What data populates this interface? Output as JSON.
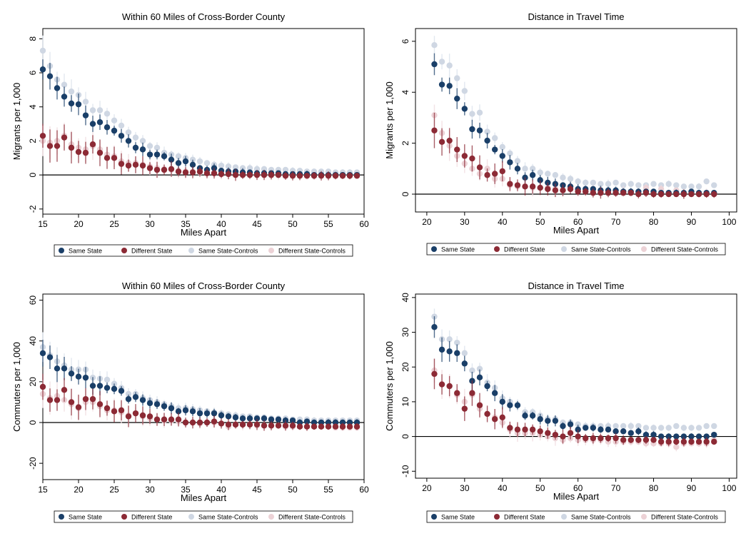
{
  "colors": {
    "same_state": "#1a3f68",
    "different_state": "#8c2a35",
    "same_state_controls": "#cfd7e3",
    "different_state_controls": "#ecd2d6",
    "same_state_ci": "#1a3f68",
    "different_state_ci": "#8c2a35",
    "same_state_controls_ci": "#dfe5ee",
    "different_state_controls_ci": "#f2dfe2"
  },
  "legend": [
    "Same State",
    "Different State",
    "Same State-Controls",
    "Different State-Controls"
  ],
  "chart_data": [
    {
      "type": "scatter",
      "title": "Within 60 Miles of Cross-Border County",
      "xlabel": "Miles Apart",
      "ylabel": "Migrants per 1,000",
      "xlim": [
        15,
        60
      ],
      "ylim": [
        -2.3,
        8.6
      ],
      "xticks": [
        15,
        20,
        25,
        30,
        35,
        40,
        45,
        50,
        55,
        60
      ],
      "yticks": [
        -2,
        0,
        2,
        4,
        6,
        8
      ],
      "grid": false,
      "legend_position": "bottom",
      "x": [
        15,
        16,
        17,
        18,
        19,
        20,
        21,
        22,
        23,
        24,
        25,
        26,
        27,
        28,
        29,
        30,
        31,
        32,
        33,
        34,
        35,
        36,
        37,
        38,
        39,
        40,
        41,
        42,
        43,
        44,
        45,
        46,
        47,
        48,
        49,
        50,
        51,
        52,
        53,
        54,
        55,
        56,
        57,
        58,
        59
      ],
      "series": [
        {
          "name": "Same State",
          "values": [
            6.2,
            5.8,
            5.1,
            4.6,
            4.2,
            4.15,
            3.5,
            3.0,
            3.1,
            2.8,
            2.6,
            2.3,
            2.0,
            1.6,
            1.5,
            1.2,
            1.2,
            1.1,
            0.9,
            0.7,
            0.8,
            0.6,
            0.4,
            0.3,
            0.4,
            0.25,
            0.2,
            0.2,
            0.15,
            0.15,
            0.1,
            0.1,
            0.1,
            0.1,
            0.05,
            0.05,
            0.05,
            0.05,
            0.0,
            0.0,
            0.0,
            0.0,
            0.0,
            0.0,
            0.0
          ]
        },
        {
          "name": "Different State",
          "values": [
            2.3,
            1.7,
            1.7,
            2.2,
            1.6,
            1.35,
            1.3,
            1.8,
            1.3,
            1.0,
            1.0,
            0.65,
            0.55,
            0.6,
            0.55,
            0.4,
            0.3,
            0.3,
            0.35,
            0.2,
            0.15,
            0.15,
            0.2,
            0.1,
            0.1,
            0.05,
            0.05,
            0.0,
            0.0,
            0.0,
            0.0,
            0.0,
            0.0,
            0.0,
            -0.05,
            -0.05,
            -0.05,
            -0.05,
            -0.05,
            -0.05,
            -0.05,
            -0.05,
            -0.05,
            -0.05,
            -0.05
          ]
        },
        {
          "name": "Same State-Controls",
          "values": [
            7.3,
            6.4,
            5.6,
            5.3,
            4.9,
            4.7,
            4.3,
            3.8,
            3.8,
            3.6,
            3.2,
            2.9,
            2.5,
            2.2,
            2.0,
            1.7,
            1.6,
            1.3,
            1.2,
            1.1,
            1.0,
            0.9,
            0.8,
            0.7,
            0.6,
            0.55,
            0.5,
            0.45,
            0.4,
            0.4,
            0.35,
            0.35,
            0.3,
            0.3,
            0.3,
            0.25,
            0.25,
            0.2,
            0.2,
            0.2,
            0.2,
            0.15,
            0.15,
            0.15,
            0.15
          ]
        },
        {
          "name": "Different State-Controls",
          "values": [
            2.0,
            1.9,
            2.0,
            2.3,
            1.8,
            1.6,
            1.5,
            1.7,
            1.5,
            1.2,
            1.1,
            0.8,
            0.7,
            0.7,
            0.6,
            0.5,
            0.4,
            0.35,
            0.3,
            0.25,
            0.2,
            0.2,
            0.15,
            0.1,
            0.1,
            0.1,
            0.05,
            0.05,
            0.05,
            0.0,
            0.0,
            0.0,
            0.0,
            0.0,
            0.0,
            0.0,
            0.0,
            0.0,
            0.0,
            0.0,
            0.0,
            0.0,
            0.0,
            0.0,
            0.0
          ]
        }
      ]
    },
    {
      "type": "scatter",
      "title": "Distance in Travel Time",
      "xlabel": "Miles Apart",
      "ylabel": "Migrants per 1,000",
      "xlim": [
        17,
        102
      ],
      "ylim": [
        -0.7,
        6.5
      ],
      "xticks": [
        20,
        30,
        40,
        50,
        60,
        70,
        80,
        90,
        100
      ],
      "yticks": [
        0,
        2,
        4,
        6
      ],
      "grid": false,
      "legend_position": "bottom",
      "x": [
        22,
        24,
        26,
        28,
        30,
        32,
        34,
        36,
        38,
        40,
        42,
        44,
        46,
        48,
        50,
        52,
        54,
        56,
        58,
        60,
        62,
        64,
        66,
        68,
        70,
        72,
        74,
        76,
        78,
        80,
        82,
        84,
        86,
        88,
        90,
        92,
        94,
        96
      ],
      "series": [
        {
          "name": "Same State",
          "values": [
            5.1,
            4.3,
            4.25,
            3.75,
            3.35,
            2.55,
            2.5,
            2.1,
            1.75,
            1.5,
            1.25,
            1.0,
            0.65,
            0.75,
            0.55,
            0.45,
            0.4,
            0.35,
            0.3,
            0.2,
            0.2,
            0.2,
            0.15,
            0.15,
            0.15,
            0.1,
            0.1,
            0.1,
            0.1,
            0.1,
            0.05,
            0.05,
            0.05,
            0.05,
            0.1,
            0.05,
            0.05,
            0.05
          ]
        },
        {
          "name": "Different State",
          "values": [
            2.5,
            2.05,
            2.1,
            1.75,
            1.5,
            1.4,
            1.05,
            0.75,
            0.8,
            0.9,
            0.4,
            0.35,
            0.3,
            0.3,
            0.25,
            0.2,
            0.15,
            0.15,
            0.2,
            0.1,
            0.1,
            0.05,
            0.05,
            0.05,
            0.05,
            0.05,
            0.05,
            0.0,
            0.05,
            0.0,
            0.0,
            0.0,
            0.0,
            0.0,
            0.0,
            0.0,
            0.0,
            0.0
          ]
        },
        {
          "name": "Same State-Controls",
          "values": [
            5.85,
            5.2,
            5.05,
            4.55,
            4.05,
            3.15,
            3.2,
            2.45,
            2.2,
            1.85,
            1.6,
            1.3,
            1.0,
            1.0,
            0.85,
            0.8,
            0.75,
            0.65,
            0.6,
            0.5,
            0.45,
            0.45,
            0.4,
            0.4,
            0.45,
            0.35,
            0.4,
            0.35,
            0.35,
            0.4,
            0.35,
            0.4,
            0.35,
            0.3,
            0.3,
            0.3,
            0.5,
            0.35
          ]
        },
        {
          "name": "Different State-Controls",
          "values": [
            3.1,
            2.4,
            1.9,
            1.5,
            1.2,
            1.0,
            0.8,
            1.0,
            0.6,
            0.6,
            0.35,
            0.3,
            0.3,
            0.25,
            0.25,
            0.25,
            0.2,
            0.15,
            0.3,
            0.15,
            0.1,
            0.1,
            0.05,
            0.1,
            0.05,
            0.1,
            0.05,
            0.05,
            0.25,
            0.05,
            0.2,
            0.05,
            0.15,
            0.0,
            0.05,
            0.0,
            0.05,
            0.0
          ]
        }
      ]
    },
    {
      "type": "scatter",
      "title": "Within 60 Miles of Cross-Border County",
      "xlabel": "Miles Apart",
      "ylabel": "Commuters per 1,000",
      "xlim": [
        15,
        60
      ],
      "ylim": [
        -28,
        63
      ],
      "xticks": [
        15,
        20,
        25,
        30,
        35,
        40,
        45,
        50,
        55,
        60
      ],
      "yticks": [
        -20,
        0,
        20,
        40,
        60
      ],
      "grid": false,
      "legend_position": "bottom",
      "x": [
        15,
        16,
        17,
        18,
        19,
        20,
        21,
        22,
        23,
        24,
        25,
        26,
        27,
        28,
        29,
        30,
        31,
        32,
        33,
        34,
        35,
        36,
        37,
        38,
        39,
        40,
        41,
        42,
        43,
        44,
        45,
        46,
        47,
        48,
        49,
        50,
        51,
        52,
        53,
        54,
        55,
        56,
        57,
        58,
        59
      ],
      "series": [
        {
          "name": "Same State",
          "values": [
            34,
            32,
            26.5,
            26.5,
            24,
            22.5,
            22,
            18,
            18,
            17,
            16.5,
            15.5,
            11.5,
            12.5,
            11,
            9.5,
            9,
            8,
            7,
            5.5,
            6,
            5.5,
            4.5,
            4.5,
            4.5,
            3.5,
            3,
            2.5,
            2,
            2,
            2,
            2,
            1.5,
            1.5,
            1,
            1,
            0,
            0.5,
            0,
            0,
            0,
            0,
            0,
            0,
            0
          ]
        },
        {
          "name": "Different State",
          "values": [
            17.5,
            11,
            11,
            16,
            10,
            7.5,
            11.5,
            11.5,
            9,
            7,
            5.5,
            6,
            3,
            4.5,
            3.5,
            3,
            1.5,
            1.5,
            1.5,
            1.5,
            0,
            0,
            0,
            0,
            0.5,
            -0.5,
            -1,
            -1,
            -1,
            -1,
            -1,
            -1.5,
            -1.5,
            -1.5,
            -1.5,
            -1.5,
            -2,
            -2,
            -2,
            -2,
            -2,
            -2,
            -2,
            -2,
            -2
          ]
        },
        {
          "name": "Same State-Controls",
          "values": [
            37,
            33,
            30,
            28,
            26,
            26,
            26,
            22,
            21.5,
            21,
            19,
            17,
            14,
            14,
            12,
            11,
            10,
            9,
            8,
            7,
            7,
            6.5,
            6,
            5.5,
            5,
            4.5,
            4,
            3.5,
            3,
            3,
            2.5,
            2.5,
            2,
            2,
            2,
            1.5,
            1.5,
            1.5,
            1,
            1,
            1,
            1,
            1,
            1,
            1
          ]
        },
        {
          "name": "Different State-Controls",
          "values": [
            14,
            12,
            13,
            11,
            9,
            7,
            10,
            10,
            8,
            6,
            6,
            5,
            3.5,
            4.5,
            3,
            2,
            1.5,
            1,
            1,
            0.5,
            0,
            0,
            -0.5,
            0,
            0,
            -0.5,
            -2,
            -1,
            -1,
            -1,
            -1.5,
            -1.5,
            -1.5,
            -1.5,
            -2,
            -2,
            -2,
            -2,
            -2,
            -2,
            -2,
            -2.5,
            -2.5,
            -2.5,
            -2.5
          ]
        }
      ]
    },
    {
      "type": "scatter",
      "title": "Distance in Travel Time",
      "xlabel": "Miles Apart",
      "ylabel": "Commuters per 1,000",
      "xlim": [
        17,
        102
      ],
      "ylim": [
        -12,
        41
      ],
      "xticks": [
        20,
        30,
        40,
        50,
        60,
        70,
        80,
        90,
        100
      ],
      "yticks": [
        -10,
        0,
        10,
        20,
        30,
        40
      ],
      "grid": false,
      "legend_position": "bottom",
      "x": [
        22,
        24,
        26,
        28,
        30,
        32,
        34,
        36,
        38,
        40,
        42,
        44,
        46,
        48,
        50,
        52,
        54,
        56,
        58,
        60,
        62,
        64,
        66,
        68,
        70,
        72,
        74,
        76,
        78,
        80,
        82,
        84,
        86,
        88,
        90,
        92,
        94,
        96
      ],
      "series": [
        {
          "name": "Same State",
          "values": [
            31.5,
            25,
            24.5,
            24,
            21,
            16,
            17,
            14.5,
            12.5,
            10,
            9,
            9,
            6,
            6,
            5,
            4.5,
            4.5,
            3,
            3.5,
            2,
            2.5,
            2.5,
            2,
            2,
            1.5,
            1.5,
            1,
            1.5,
            0.5,
            0.5,
            0,
            0,
            0,
            0,
            0,
            0,
            0,
            0.5
          ]
        },
        {
          "name": "Different State",
          "values": [
            18,
            15,
            14.5,
            12.5,
            8,
            12.5,
            9,
            6.5,
            5,
            5.5,
            2.5,
            2,
            2,
            2,
            1.5,
            1,
            0.5,
            0,
            1,
            0,
            -0.5,
            -0.5,
            -0.5,
            -0.5,
            -0.5,
            -1,
            -1,
            -1,
            -1,
            -1,
            -1.5,
            -1.5,
            -1.5,
            -1.5,
            -1.5,
            -1.5,
            -1.5,
            -1.5
          ]
        },
        {
          "name": "Same State-Controls",
          "values": [
            34.5,
            28,
            28,
            27,
            24,
            19,
            19.5,
            15.5,
            14,
            11,
            10,
            9,
            7,
            7,
            6,
            5,
            5,
            4,
            4,
            3.5,
            3,
            3,
            3,
            3,
            3,
            3,
            3,
            3,
            2.5,
            2.5,
            2.5,
            2.5,
            3,
            2.5,
            2.5,
            2.5,
            3,
            3
          ]
        },
        {
          "name": "Different State-Controls",
          "values": [
            19,
            15,
            14.5,
            12,
            10,
            12,
            8,
            6.5,
            5.5,
            4,
            2,
            1,
            1,
            1,
            0.5,
            0,
            -0.5,
            -1,
            -0.5,
            -1,
            -1,
            -1,
            -1,
            -1.5,
            -1.5,
            -1.5,
            -1.5,
            -1.5,
            -2,
            -2,
            -2,
            -2,
            -3,
            -2,
            -2,
            -2,
            -2,
            -1
          ]
        }
      ]
    }
  ]
}
